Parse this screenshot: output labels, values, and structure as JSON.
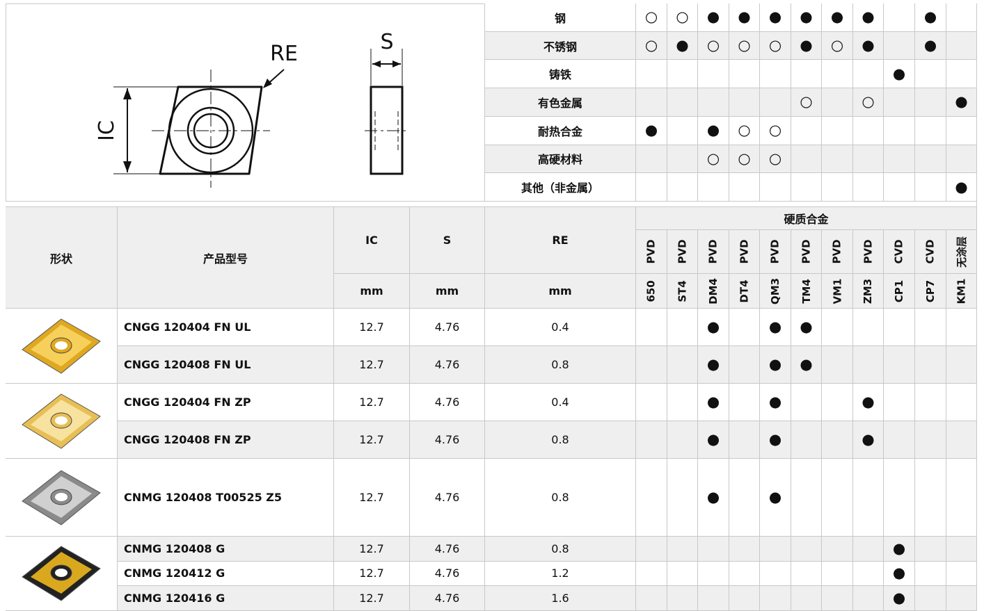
{
  "diagram": {
    "labels": {
      "re": "RE",
      "s": "S",
      "ic": "IC"
    }
  },
  "materials": {
    "rows": [
      {
        "name": "钢",
        "marks": [
          "○",
          "○",
          "●",
          "●",
          "●",
          "●",
          "●",
          "●",
          null,
          "●",
          null
        ]
      },
      {
        "name": "不锈钢",
        "marks": [
          "○",
          "●",
          "○",
          "○",
          "○",
          "●",
          "○",
          "●",
          null,
          "●",
          null
        ]
      },
      {
        "name": "铸铁",
        "marks": [
          null,
          null,
          null,
          null,
          null,
          null,
          null,
          null,
          "●",
          null,
          null
        ]
      },
      {
        "name": "有色金属",
        "marks": [
          null,
          null,
          null,
          null,
          null,
          "○",
          null,
          "○",
          null,
          null,
          "●"
        ]
      },
      {
        "name": "耐热合金",
        "marks": [
          "●",
          null,
          "●",
          "○",
          "○",
          null,
          null,
          null,
          null,
          null,
          null
        ]
      },
      {
        "name": "高硬材料",
        "marks": [
          null,
          null,
          "○",
          "○",
          "○",
          null,
          null,
          null,
          null,
          null,
          null
        ]
      },
      {
        "name": "其他（非金属）",
        "marks": [
          null,
          null,
          null,
          null,
          null,
          null,
          null,
          null,
          null,
          null,
          "●"
        ]
      }
    ]
  },
  "header": {
    "shape": "形状",
    "model": "产品型号",
    "ic": "IC",
    "s": "S",
    "re": "RE",
    "ic_unit": "mm",
    "s_unit": "mm",
    "re_unit": "mm",
    "group": "硬质合金",
    "coatings": [
      "PVD",
      "PVD",
      "PVD",
      "PVD",
      "PVD",
      "PVD",
      "PVD",
      "PVD",
      "CVD",
      "CVD",
      "无涂层"
    ],
    "grades": [
      "650",
      "ST4",
      "DM4",
      "DT4",
      "QM3",
      "TM4",
      "VM1",
      "ZM3",
      "CP1",
      "CP7",
      "KM1"
    ]
  },
  "groups": [
    {
      "rows": [
        {
          "model": "CNGG 120404 FN UL",
          "ic": "12.7",
          "s": "4.76",
          "re": "0.4",
          "marks": [
            null,
            null,
            "●",
            null,
            "●",
            "●",
            null,
            null,
            null,
            null,
            null
          ]
        },
        {
          "model": "CNGG 120408 FN UL",
          "ic": "12.7",
          "s": "4.76",
          "re": "0.8",
          "marks": [
            null,
            null,
            "●",
            null,
            "●",
            "●",
            null,
            null,
            null,
            null,
            null
          ]
        }
      ]
    },
    {
      "rows": [
        {
          "model": "CNGG 120404 FN ZP",
          "ic": "12.7",
          "s": "4.76",
          "re": "0.4",
          "marks": [
            null,
            null,
            "●",
            null,
            "●",
            null,
            null,
            "●",
            null,
            null,
            null
          ]
        },
        {
          "model": "CNGG 120408 FN ZP",
          "ic": "12.7",
          "s": "4.76",
          "re": "0.8",
          "marks": [
            null,
            null,
            "●",
            null,
            "●",
            null,
            null,
            "●",
            null,
            null,
            null
          ]
        }
      ]
    },
    {
      "rows": [
        {
          "model": "CNMG 120408 T00525 Z5",
          "ic": "12.7",
          "s": "4.76",
          "re": "0.8",
          "marks": [
            null,
            null,
            "●",
            null,
            "●",
            null,
            null,
            null,
            null,
            null,
            null
          ]
        }
      ]
    },
    {
      "rows": [
        {
          "model": "CNMG 120408 G",
          "ic": "12.7",
          "s": "4.76",
          "re": "0.8",
          "marks": [
            null,
            null,
            null,
            null,
            null,
            null,
            null,
            null,
            "●",
            null,
            null
          ]
        },
        {
          "model": "CNMG 120412 G",
          "ic": "12.7",
          "s": "4.76",
          "re": "1.2",
          "marks": [
            null,
            null,
            null,
            null,
            null,
            null,
            null,
            null,
            "●",
            null,
            null
          ]
        },
        {
          "model": "CNMG 120416 G",
          "ic": "12.7",
          "s": "4.76",
          "re": "1.6",
          "marks": [
            null,
            null,
            null,
            null,
            null,
            null,
            null,
            null,
            "●",
            null,
            null
          ]
        }
      ]
    }
  ]
}
